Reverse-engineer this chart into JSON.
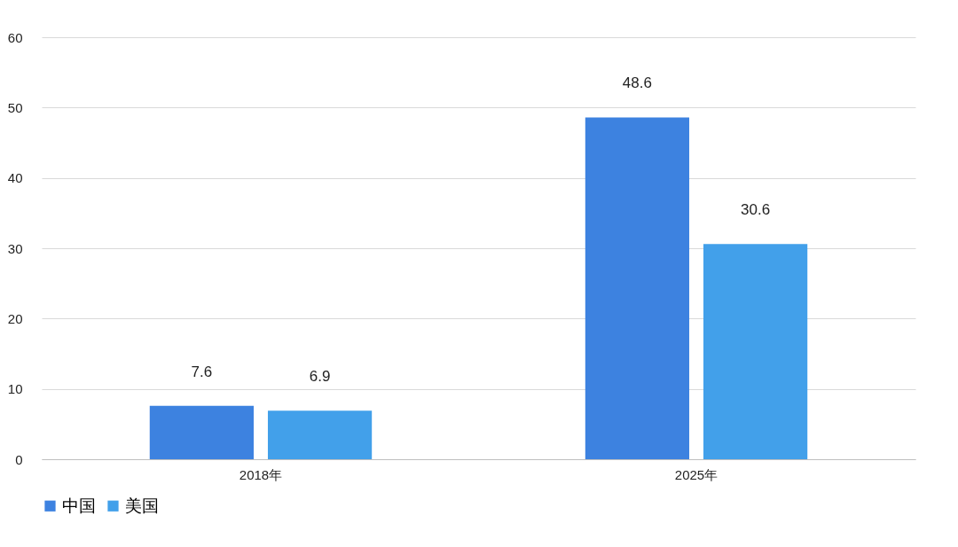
{
  "chart_data": {
    "type": "bar",
    "categories": [
      "2018年",
      "2025年"
    ],
    "series": [
      {
        "name": "中国",
        "color": "#3d82e0",
        "values": [
          7.6,
          48.6
        ]
      },
      {
        "name": "美国",
        "color": "#42a0ea",
        "values": [
          6.9,
          30.6
        ]
      }
    ],
    "ylim": [
      0,
      60
    ],
    "yticks": [
      0,
      10,
      20,
      30,
      40,
      50,
      60
    ],
    "grid": "y",
    "legend": "bottom",
    "data_labels": true
  }
}
